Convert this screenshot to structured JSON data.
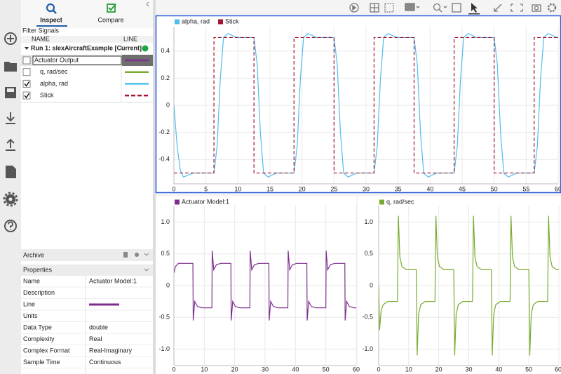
{
  "tabs": [
    "Inspect",
    "Compare"
  ],
  "filter_label": "Filter Signals",
  "columns": [
    "NAME",
    "LINE"
  ],
  "run": "Run 1: slexAircraftExample [Current]",
  "signals": [
    {
      "name": "Actuator Output",
      "checked": false,
      "line_color": "#7e2f8e",
      "editing": true
    },
    {
      "name": "q, rad/sec",
      "checked": false,
      "line_color": "#77ac30"
    },
    {
      "name": "alpha, rad",
      "checked": true,
      "line_color": "#4dbeee"
    },
    {
      "name": "Stick",
      "checked": true,
      "line_color": "#a2142f",
      "dashed": true
    }
  ],
  "archive": "Archive",
  "properties": {
    "title": "Properties",
    "rows": [
      {
        "label": "Name",
        "value": "Actuator Model:1"
      },
      {
        "label": "Description"
      },
      {
        "label": "Line",
        "color": "#7e2f8e"
      },
      {
        "label": "Units"
      },
      {
        "label": "Data Type",
        "value": "double"
      },
      {
        "label": "Complexity",
        "value": "Real"
      },
      {
        "label": "Complex Format",
        "value": "Real-Imaginary"
      },
      {
        "label": "Sample Time",
        "value": "Continuous"
      }
    ]
  },
  "chart_data": [
    {
      "type": "line",
      "grid": true,
      "xlim": [
        0,
        60
      ],
      "xticks": [
        0,
        5,
        10,
        15,
        20,
        25,
        30,
        35,
        40,
        45,
        50,
        55,
        60
      ],
      "ylim": [
        -0.58,
        0.58
      ],
      "yticks": [
        -0.4,
        -0.2,
        0,
        0.2,
        0.4
      ],
      "series": [
        {
          "name": "alpha, rad",
          "color": "#4dbeee",
          "x": [
            0,
            0.5,
            1,
            1.5,
            3,
            6.25,
            6.75,
            7.25,
            7.75,
            8.45,
            9.75,
            12.5,
            13,
            13.5,
            14,
            14.7,
            16,
            18.75,
            19.25,
            19.75,
            20.25,
            20.95,
            22.25,
            25,
            25.5,
            26,
            26.5,
            27.2,
            28.5,
            31.25,
            31.75,
            32.25,
            32.75,
            33.45,
            34.75,
            37.5,
            38,
            38.5,
            39,
            39.7,
            41,
            43.75,
            44.25,
            44.75,
            45.25,
            45.95,
            47.25,
            50,
            50.5,
            51,
            51.5,
            52.2,
            53.5,
            56.25,
            56.75,
            57.25,
            57.75,
            58.45,
            59.75,
            60
          ],
          "values": [
            0,
            -0.3,
            -0.48,
            -0.53,
            -0.5,
            -0.5,
            -0.3,
            0.2,
            0.5,
            0.53,
            0.5,
            0.5,
            0.3,
            -0.2,
            -0.5,
            -0.53,
            -0.5,
            -0.5,
            -0.3,
            0.2,
            0.5,
            0.53,
            0.5,
            0.5,
            0.3,
            -0.2,
            -0.5,
            -0.53,
            -0.5,
            -0.5,
            -0.3,
            0.2,
            0.5,
            0.53,
            0.5,
            0.5,
            0.3,
            -0.2,
            -0.5,
            -0.53,
            -0.5,
            -0.5,
            -0.3,
            0.2,
            0.5,
            0.53,
            0.5,
            0.5,
            0.3,
            -0.2,
            -0.5,
            -0.53,
            -0.5,
            -0.5,
            -0.3,
            0.2,
            0.5,
            0.53,
            0.5,
            0.5
          ]
        },
        {
          "name": "Stick",
          "color": "#a2142f",
          "dashed": true,
          "x": [
            0,
            6.25,
            6.25,
            12.5,
            12.5,
            18.75,
            18.75,
            25,
            25,
            31.25,
            31.25,
            37.5,
            37.5,
            43.75,
            43.75,
            50,
            50,
            56.25,
            56.25,
            60
          ],
          "values": [
            -0.5,
            -0.5,
            0.5,
            0.5,
            -0.5,
            -0.5,
            0.5,
            0.5,
            -0.5,
            -0.5,
            0.5,
            0.5,
            -0.5,
            -0.5,
            0.5,
            0.5,
            -0.5,
            -0.5,
            0.5,
            0.5
          ]
        }
      ]
    },
    {
      "type": "line",
      "grid": true,
      "xlim": [
        0,
        60
      ],
      "xticks": [
        0,
        10,
        20,
        30,
        40,
        50,
        60
      ],
      "ylim": [
        -1.26,
        1.26
      ],
      "yticks": [
        {
          "value": -1,
          "label": "-1.0"
        },
        -0.5,
        0,
        0.5,
        {
          "value": 1,
          "label": "1.0"
        }
      ],
      "series": [
        {
          "name": "Actuator Model:1",
          "color": "#7e2f8e",
          "x": [
            0,
            0.5,
            1.5,
            3,
            6.25,
            6.35,
            6.85,
            7.75,
            9.25,
            12.5,
            12.6,
            13.1,
            14,
            15.5,
            18.75,
            18.85,
            19.35,
            20.25,
            21.75,
            25,
            25.1,
            25.6,
            26.5,
            28,
            31.25,
            31.35,
            31.85,
            32.75,
            34.25,
            37.5,
            37.6,
            38.1,
            39,
            40.5,
            43.75,
            43.85,
            44.35,
            45.25,
            46.75,
            50,
            50.1,
            50.6,
            51.5,
            53,
            56.25,
            56.35,
            56.85,
            57.75,
            59.25,
            60
          ],
          "values": [
            0.2,
            0.3,
            0.35,
            0.35,
            0.35,
            -0.55,
            -0.25,
            -0.33,
            -0.35,
            -0.35,
            0.55,
            0.25,
            0.33,
            0.35,
            0.35,
            -0.55,
            -0.25,
            -0.33,
            -0.35,
            -0.35,
            0.55,
            0.25,
            0.33,
            0.35,
            0.35,
            -0.55,
            -0.25,
            -0.33,
            -0.35,
            -0.35,
            0.55,
            0.25,
            0.33,
            0.35,
            0.35,
            -0.55,
            -0.25,
            -0.33,
            -0.35,
            -0.35,
            0.55,
            0.25,
            0.33,
            0.35,
            0.35,
            -0.55,
            -0.25,
            -0.33,
            -0.35,
            -0.35
          ]
        }
      ]
    },
    {
      "type": "line",
      "grid": true,
      "xlim": [
        0,
        60
      ],
      "xticks": [
        0,
        10,
        20,
        30,
        40,
        50,
        60
      ],
      "ylim": [
        -1.26,
        1.26
      ],
      "yticks": [
        {
          "value": -1,
          "label": "-1.0"
        },
        -0.5,
        0,
        0.5,
        {
          "value": 1,
          "label": "1.0"
        }
      ],
      "series": [
        {
          "name": "q, rad/sec",
          "color": "#77ac30",
          "x": [
            0,
            0.3,
            0.8,
            1.5,
            3,
            6.25,
            6.55,
            7.05,
            7.75,
            9.25,
            12.5,
            12.8,
            13.3,
            14,
            15.5,
            18.75,
            19.05,
            19.55,
            20.25,
            21.75,
            25,
            25.3,
            25.8,
            26.5,
            28,
            31.25,
            31.55,
            32.05,
            32.75,
            34.25,
            37.5,
            37.8,
            38.3,
            39,
            40.5,
            43.75,
            44.05,
            44.55,
            45.25,
            46.75,
            50,
            50.3,
            50.8,
            51.5,
            53,
            56.25,
            56.55,
            57.05,
            57.75,
            59.25,
            60
          ],
          "values": [
            0,
            -0.7,
            -0.4,
            -0.3,
            -0.25,
            -0.25,
            1.1,
            0.45,
            0.3,
            0.25,
            0.25,
            -1.1,
            -0.45,
            -0.3,
            -0.25,
            -0.25,
            1.1,
            0.45,
            0.3,
            0.25,
            0.25,
            -1.1,
            -0.45,
            -0.3,
            -0.25,
            -0.25,
            1.1,
            0.45,
            0.3,
            0.25,
            0.25,
            -1.1,
            -0.45,
            -0.3,
            -0.25,
            -0.25,
            1.1,
            0.45,
            0.3,
            0.25,
            0.25,
            -1.1,
            -0.45,
            -0.3,
            -0.25,
            -0.25,
            1.1,
            0.45,
            0.3,
            0.25,
            0.25
          ]
        }
      ]
    }
  ]
}
